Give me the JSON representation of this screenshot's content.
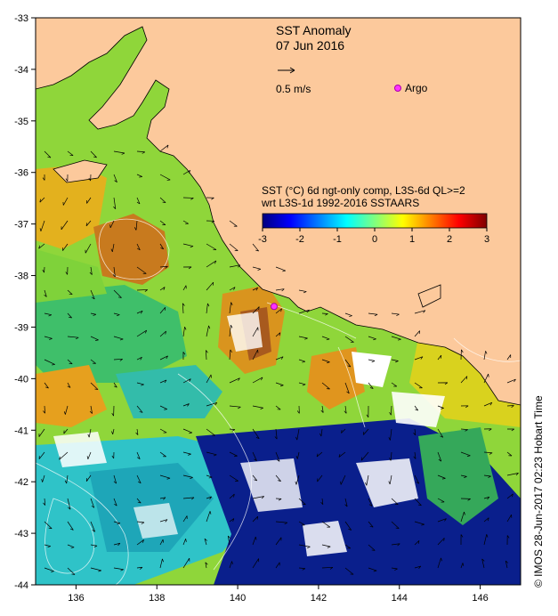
{
  "title": "SST Anomaly",
  "date": "07 Jun 2016",
  "velocity_legend": {
    "label": "0.5 m/s"
  },
  "argo_legend": {
    "label": "Argo",
    "color": "#ff33ff"
  },
  "colorbar": {
    "title_line1": "SST (°C) 6d ngt-only comp, L3S-6d QL>=2",
    "title_line2": "wrt L3S-1d 1992-2016 SSTAARS",
    "ticks": [
      "-3",
      "-2",
      "-1",
      "0",
      "1",
      "2",
      "3"
    ],
    "min": -3,
    "max": 3,
    "colors": [
      "#00007f",
      "#0000ff",
      "#007fff",
      "#00ffff",
      "#7fff7f",
      "#ffff00",
      "#ff7f00",
      "#ff0000",
      "#7f0000"
    ]
  },
  "axes": {
    "x_ticks": [
      "136",
      "138",
      "140",
      "142",
      "144",
      "146"
    ],
    "y_ticks": [
      "-33",
      "-34",
      "-35",
      "-36",
      "-37",
      "-38",
      "-39",
      "-40",
      "-41",
      "-42",
      "-43",
      "-44"
    ],
    "lon_range": [
      135,
      147
    ],
    "lat_range": [
      -44,
      -33
    ]
  },
  "land_color": "#fcc99c",
  "argo_floats": [
    {
      "lon": 140.9,
      "lat": -38.6
    }
  ],
  "credit": "©  IMOS 28-Jun-2017 02:23 Hobart Time"
}
